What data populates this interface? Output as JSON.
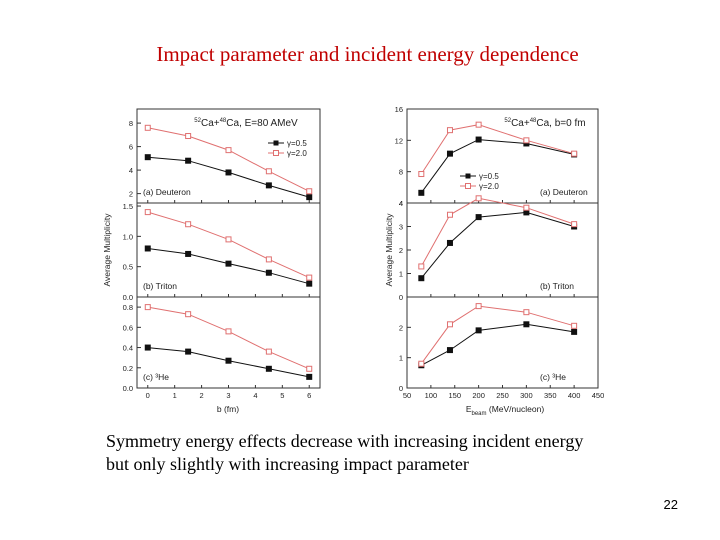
{
  "slide": {
    "title": "Impact parameter and incident energy dependence",
    "caption_lines": [
      "Symmetry energy effects decrease with increasing incident energy",
      "but only slightly with increasing impact parameter"
    ],
    "page_number": "22"
  },
  "colors": {
    "gamma_soft": "#111111",
    "gamma_stiff": "#e07070",
    "frame": "#333333"
  },
  "chart_data": [
    {
      "type": "line",
      "title": "52Ca+48Ca, E=80 AMeV",
      "xlabel": "b (fm)",
      "ylabel": "Average Multiplicity",
      "xlim": [
        -0.4,
        6.4
      ],
      "xticks": [
        "0",
        "1",
        "2",
        "3",
        "4",
        "5",
        "6"
      ],
      "x": [
        0,
        1.5,
        3,
        4.5,
        6
      ],
      "legend": [
        "γ=0.5",
        "γ=2.0"
      ],
      "panels": [
        {
          "label": "(a) Deuteron",
          "ylim": [
            1.2,
            9.2
          ],
          "yticks": [
            "2",
            "4",
            "6",
            "8"
          ],
          "series": [
            {
              "name": "γ=0.5",
              "values": [
                5.1,
                4.8,
                3.8,
                2.7,
                1.7
              ]
            },
            {
              "name": "γ=2.0",
              "values": [
                7.6,
                6.9,
                5.7,
                3.9,
                2.2
              ]
            }
          ]
        },
        {
          "label": "(b) Triton",
          "ylim": [
            0.0,
            1.55
          ],
          "yticks": [
            "0.0",
            "0.5",
            "1.0",
            "1.5"
          ],
          "series": [
            {
              "name": "γ=0.5",
              "values": [
                0.8,
                0.71,
                0.55,
                0.4,
                0.22
              ]
            },
            {
              "name": "γ=2.0",
              "values": [
                1.4,
                1.2,
                0.95,
                0.62,
                0.32
              ]
            }
          ]
        },
        {
          "label": "(c) ³He",
          "ylim": [
            0.0,
            0.9
          ],
          "yticks": [
            "0.0",
            "0.2",
            "0.4",
            "0.6",
            "0.8"
          ],
          "series": [
            {
              "name": "γ=0.5",
              "values": [
                0.4,
                0.36,
                0.27,
                0.19,
                0.11
              ]
            },
            {
              "name": "γ=2.0",
              "values": [
                0.8,
                0.73,
                0.56,
                0.36,
                0.19
              ]
            }
          ]
        }
      ]
    },
    {
      "type": "line",
      "title": "52Ca+48Ca, b=0 fm",
      "xlabel": "E_beam (MeV/nucleon)",
      "ylabel": "Average Multiplicity",
      "xlim": [
        50,
        450
      ],
      "xticks": [
        "50",
        "100",
        "150",
        "200",
        "250",
        "300",
        "350",
        "400",
        "450"
      ],
      "x": [
        80,
        140,
        200,
        300,
        400
      ],
      "legend": [
        "γ=0.5",
        "γ=2.0"
      ],
      "panels": [
        {
          "label": "(a) Deuteron",
          "ylim": [
            4,
            16
          ],
          "yticks": [
            "4",
            "8",
            "12",
            "16"
          ],
          "series": [
            {
              "name": "γ=0.5",
              "values": [
                5.3,
                10.3,
                12.1,
                11.6,
                10.2
              ]
            },
            {
              "name": "γ=2.0",
              "values": [
                7.7,
                13.3,
                14.0,
                12.0,
                10.3
              ]
            }
          ]
        },
        {
          "label": "(b) Triton",
          "ylim": [
            0,
            4
          ],
          "yticks": [
            "0",
            "1",
            "2",
            "3",
            "4"
          ],
          "series": [
            {
              "name": "γ=0.5",
              "values": [
                0.8,
                2.3,
                3.4,
                3.6,
                3.0
              ]
            },
            {
              "name": "γ=2.0",
              "values": [
                1.3,
                3.5,
                4.2,
                3.8,
                3.1
              ]
            }
          ]
        },
        {
          "label": "(c) ³He",
          "ylim": [
            0,
            3
          ],
          "yticks": [
            "0",
            "1",
            "2"
          ],
          "series": [
            {
              "name": "γ=0.5",
              "values": [
                0.75,
                1.25,
                1.9,
                2.1,
                1.85
              ]
            },
            {
              "name": "γ=2.0",
              "values": [
                0.8,
                2.1,
                2.7,
                2.5,
                2.05
              ]
            }
          ]
        }
      ]
    }
  ]
}
